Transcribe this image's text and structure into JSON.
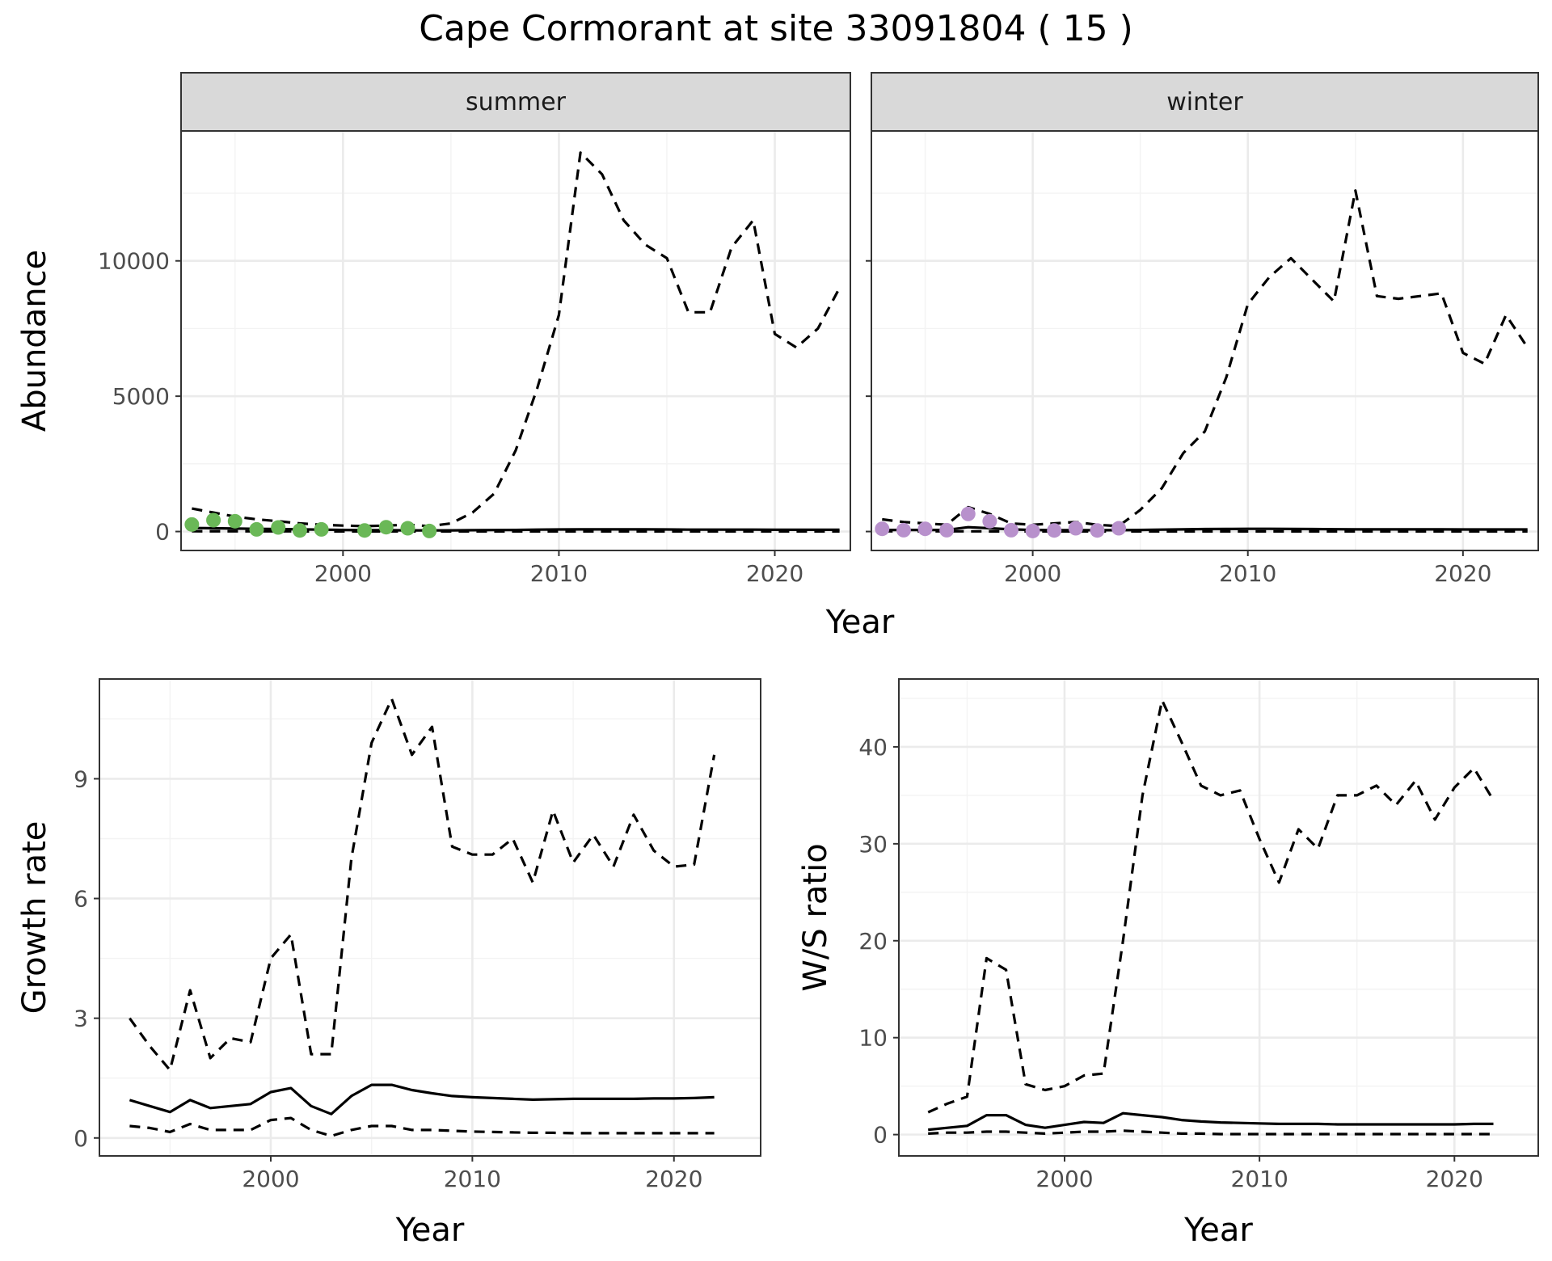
{
  "figure": {
    "title": "Cape Cormorant at site 33091804 ( 15 )"
  },
  "chart_data": [
    {
      "id": "summer",
      "type": "line",
      "strip": "summer",
      "xlabel": "",
      "ylabel": "Abundance",
      "xlim": [
        1992.5,
        2023.5
      ],
      "ylim": [
        -700,
        14800
      ],
      "x_ticks": [
        2000,
        2010,
        2020
      ],
      "y_ticks": [
        0,
        5000,
        10000
      ],
      "grid": true,
      "show_y_labels": true,
      "point_color": "#6ab857",
      "series": [
        {
          "style": "solid",
          "x": [
            1993,
            1994,
            1995,
            1996,
            1997,
            1998,
            1999,
            2000,
            2001,
            2002,
            2003,
            2004,
            2005,
            2006,
            2007,
            2008,
            2009,
            2010,
            2011,
            2012,
            2013,
            2014,
            2015,
            2016,
            2017,
            2018,
            2019,
            2020,
            2021,
            2022,
            2023
          ],
          "y": [
            130,
            120,
            110,
            100,
            90,
            80,
            70,
            60,
            50,
            50,
            45,
            40,
            45,
            50,
            55,
            60,
            70,
            75,
            80,
            80,
            80,
            80,
            75,
            70,
            70,
            70,
            70,
            65,
            65,
            65,
            65
          ]
        },
        {
          "style": "dashed",
          "x": [
            1993,
            1994,
            1995,
            1996,
            1997,
            1998,
            1999,
            2000,
            2001,
            2002,
            2003,
            2004,
            2005,
            2006,
            2007,
            2008,
            2009,
            2010,
            2011,
            2012,
            2013,
            2014,
            2015,
            2016,
            2017,
            2018,
            2019,
            2020,
            2021,
            2022,
            2023
          ],
          "y": [
            850,
            700,
            550,
            450,
            380,
            300,
            250,
            220,
            200,
            220,
            250,
            200,
            300,
            700,
            1400,
            3000,
            5300,
            8000,
            14000,
            13200,
            11500,
            10600,
            10100,
            8100,
            8100,
            10500,
            11500,
            7300,
            6800,
            7500,
            9000
          ]
        },
        {
          "style": "dashed",
          "x": [
            1993,
            2000,
            2010,
            2023
          ],
          "y": [
            10,
            5,
            5,
            5
          ]
        }
      ],
      "points": {
        "x": [
          1993,
          1994,
          1995,
          1996,
          1997,
          1998,
          1999,
          2001,
          2002,
          2003,
          2004
        ],
        "y": [
          260,
          420,
          380,
          80,
          150,
          40,
          80,
          40,
          160,
          120,
          20
        ]
      }
    },
    {
      "id": "winter",
      "type": "line",
      "strip": "winter",
      "xlabel": "",
      "ylabel": "",
      "xlim": [
        1992.5,
        2023.5
      ],
      "ylim": [
        -700,
        14800
      ],
      "x_ticks": [
        2000,
        2010,
        2020
      ],
      "y_ticks": [
        0,
        5000,
        10000
      ],
      "grid": true,
      "show_y_labels": false,
      "point_color": "#b891cc",
      "series": [
        {
          "style": "solid",
          "x": [
            1993,
            1994,
            1995,
            1996,
            1997,
            1998,
            1999,
            2000,
            2001,
            2002,
            2003,
            2004,
            2005,
            2006,
            2007,
            2008,
            2009,
            2010,
            2011,
            2012,
            2013,
            2014,
            2015,
            2016,
            2017,
            2018,
            2019,
            2020,
            2021,
            2022,
            2023
          ],
          "y": [
            60,
            60,
            60,
            60,
            160,
            120,
            80,
            60,
            50,
            50,
            50,
            50,
            60,
            70,
            80,
            90,
            95,
            100,
            100,
            95,
            90,
            85,
            80,
            80,
            80,
            80,
            80,
            75,
            75,
            75,
            75
          ]
        },
        {
          "style": "dashed",
          "x": [
            1993,
            1994,
            1995,
            1996,
            1997,
            1998,
            1999,
            2000,
            2001,
            2002,
            2003,
            2004,
            2005,
            2006,
            2007,
            2008,
            2009,
            2010,
            2011,
            2012,
            2013,
            2014,
            2015,
            2016,
            2017,
            2018,
            2019,
            2020,
            2021,
            2022,
            2023
          ],
          "y": [
            450,
            350,
            300,
            250,
            900,
            650,
            300,
            250,
            300,
            350,
            250,
            200,
            800,
            1600,
            2900,
            3700,
            5700,
            8400,
            9400,
            10100,
            9300,
            8500,
            12600,
            8700,
            8600,
            8700,
            8800,
            6600,
            6200,
            8000,
            6800
          ]
        },
        {
          "style": "dashed",
          "x": [
            1993,
            2000,
            2010,
            2023
          ],
          "y": [
            10,
            5,
            5,
            5
          ]
        }
      ],
      "points": {
        "x": [
          1993,
          1994,
          1995,
          1996,
          1997,
          1998,
          1999,
          2000,
          2001,
          2002,
          2003,
          2004
        ],
        "y": [
          100,
          50,
          100,
          50,
          650,
          380,
          50,
          20,
          40,
          120,
          40,
          120
        ]
      }
    },
    {
      "id": "growth",
      "type": "line",
      "strip": "",
      "xlabel": "Year",
      "ylabel": "Growth rate",
      "xlim": [
        1991.5,
        2024.3
      ],
      "ylim": [
        -0.45,
        11.5
      ],
      "x_ticks": [
        2000,
        2010,
        2020
      ],
      "y_ticks": [
        0,
        3,
        6,
        9
      ],
      "grid": true,
      "show_y_labels": true,
      "series": [
        {
          "style": "solid",
          "x": [
            1993,
            1994,
            1995,
            1996,
            1997,
            1998,
            1999,
            2000,
            2001,
            2002,
            2003,
            2004,
            2005,
            2006,
            2007,
            2008,
            2009,
            2010,
            2011,
            2012,
            2013,
            2014,
            2015,
            2016,
            2017,
            2018,
            2019,
            2020,
            2021,
            2022
          ],
          "y": [
            0.95,
            0.8,
            0.65,
            0.95,
            0.75,
            0.8,
            0.85,
            1.15,
            1.25,
            0.8,
            0.6,
            1.05,
            1.33,
            1.33,
            1.2,
            1.12,
            1.05,
            1.02,
            1.0,
            0.98,
            0.96,
            0.97,
            0.98,
            0.98,
            0.98,
            0.98,
            0.99,
            0.99,
            1.0,
            1.02
          ]
        },
        {
          "style": "dashed",
          "x": [
            1993,
            1994,
            1995,
            1996,
            1997,
            1998,
            1999,
            2000,
            2001,
            2002,
            2003,
            2004,
            2005,
            2006,
            2007,
            2008,
            2009,
            2010,
            2011,
            2012,
            2013,
            2014,
            2015,
            2016,
            2017,
            2018,
            2019,
            2020,
            2021,
            2022
          ],
          "y": [
            3.0,
            2.3,
            1.7,
            3.7,
            2.0,
            2.5,
            2.4,
            4.5,
            5.1,
            2.1,
            2.1,
            7.0,
            9.9,
            11.0,
            9.6,
            10.3,
            7.3,
            7.1,
            7.1,
            7.5,
            6.4,
            8.2,
            6.9,
            7.6,
            6.8,
            8.1,
            7.2,
            6.8,
            6.85,
            9.6
          ]
        },
        {
          "style": "dashed",
          "x": [
            1993,
            1994,
            1995,
            1996,
            1997,
            1998,
            1999,
            2000,
            2001,
            2002,
            2003,
            2004,
            2005,
            2006,
            2007,
            2008,
            2009,
            2010,
            2011,
            2012,
            2013,
            2014,
            2015,
            2016,
            2017,
            2018,
            2019,
            2020,
            2021,
            2022
          ],
          "y": [
            0.3,
            0.25,
            0.15,
            0.35,
            0.2,
            0.2,
            0.2,
            0.45,
            0.5,
            0.2,
            0.05,
            0.2,
            0.3,
            0.3,
            0.2,
            0.2,
            0.18,
            0.16,
            0.15,
            0.14,
            0.13,
            0.13,
            0.12,
            0.12,
            0.12,
            0.12,
            0.12,
            0.12,
            0.12,
            0.12
          ]
        }
      ]
    },
    {
      "id": "ws_ratio",
      "type": "line",
      "strip": "",
      "xlabel": "Year",
      "ylabel": "W/S ratio",
      "xlim": [
        1991.5,
        2024.3
      ],
      "ylim": [
        -2.2,
        47
      ],
      "x_ticks": [
        2000,
        2010,
        2020
      ],
      "y_ticks": [
        0,
        10,
        20,
        30,
        40
      ],
      "grid": true,
      "show_y_labels": true,
      "series": [
        {
          "style": "solid",
          "x": [
            1993,
            1994,
            1995,
            1996,
            1997,
            1998,
            1999,
            2000,
            2001,
            2002,
            2003,
            2004,
            2005,
            2006,
            2007,
            2008,
            2009,
            2010,
            2011,
            2012,
            2013,
            2014,
            2015,
            2016,
            2017,
            2018,
            2019,
            2020,
            2021,
            2022
          ],
          "y": [
            0.5,
            0.7,
            0.9,
            2.0,
            2.0,
            1.0,
            0.7,
            1.0,
            1.3,
            1.2,
            2.2,
            2.0,
            1.8,
            1.5,
            1.35,
            1.25,
            1.2,
            1.15,
            1.1,
            1.1,
            1.1,
            1.05,
            1.05,
            1.05,
            1.05,
            1.05,
            1.05,
            1.05,
            1.1,
            1.1
          ]
        },
        {
          "style": "dashed",
          "x": [
            1993,
            1994,
            1995,
            1996,
            1997,
            1998,
            1999,
            2000,
            2001,
            2002,
            2003,
            2004,
            2005,
            2006,
            2007,
            2008,
            2009,
            2010,
            2011,
            2012,
            2013,
            2014,
            2015,
            2016,
            2017,
            2018,
            2019,
            2020,
            2021,
            2022
          ],
          "y": [
            2.3,
            3.2,
            3.9,
            18.2,
            17.0,
            5.2,
            4.6,
            5.0,
            6.1,
            6.3,
            20.0,
            35.0,
            44.8,
            40.5,
            36.0,
            35.0,
            35.5,
            30.5,
            26.0,
            31.5,
            29.5,
            35.0,
            35.0,
            36.0,
            34.0,
            36.5,
            32.5,
            35.8,
            37.8,
            34.5
          ]
        },
        {
          "style": "dashed",
          "x": [
            1993,
            1994,
            1995,
            1996,
            1997,
            1998,
            1999,
            2000,
            2001,
            2002,
            2003,
            2004,
            2005,
            2006,
            2007,
            2008,
            2009,
            2010,
            2011,
            2012,
            2013,
            2014,
            2015,
            2016,
            2017,
            2018,
            2019,
            2020,
            2021,
            2022
          ],
          "y": [
            0.1,
            0.2,
            0.2,
            0.3,
            0.3,
            0.2,
            0.1,
            0.2,
            0.3,
            0.3,
            0.4,
            0.3,
            0.2,
            0.1,
            0.1,
            0.05,
            0.05,
            0.05,
            0.05,
            0.05,
            0.05,
            0.05,
            0.05,
            0.05,
            0.05,
            0.05,
            0.05,
            0.05,
            0.05,
            0.05
          ]
        }
      ]
    }
  ]
}
